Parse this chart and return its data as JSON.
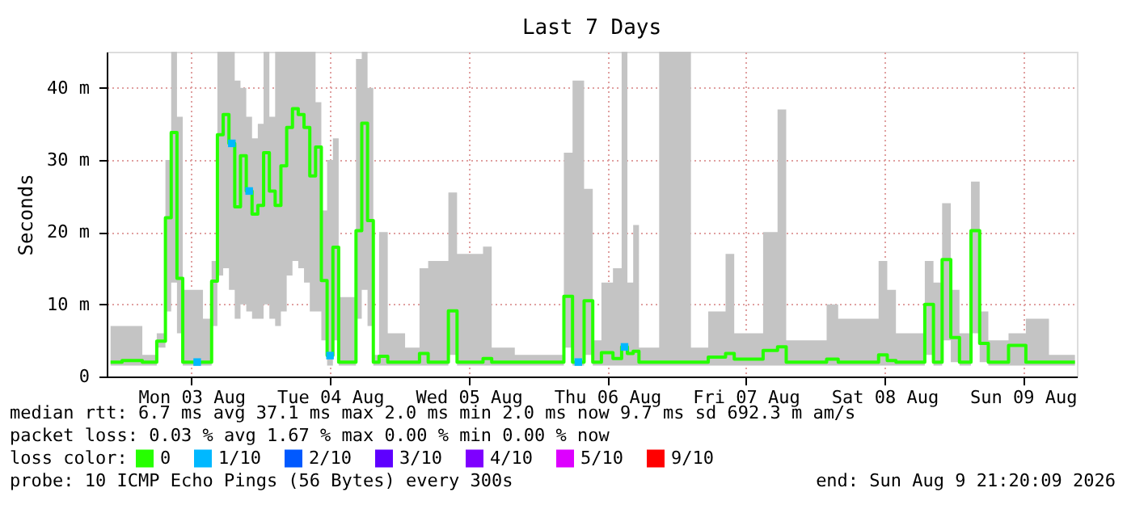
{
  "chart_data": {
    "type": "step",
    "title": "Last 7 Days",
    "ylabel": "Seconds",
    "legend_title": "loss color:",
    "xlim": [
      "2026-08-02T21:20",
      "2026-08-09T21:20"
    ],
    "xticks": [
      {
        "value": "2026-08-03T12:00",
        "label": "Mon 03 Aug"
      },
      {
        "value": "2026-08-04T12:00",
        "label": "Tue 04 Aug"
      },
      {
        "value": "2026-08-05T12:00",
        "label": "Wed 05 Aug"
      },
      {
        "value": "2026-08-06T12:00",
        "label": "Thu 06 Aug"
      },
      {
        "value": "2026-08-07T12:00",
        "label": "Fri 07 Aug"
      },
      {
        "value": "2026-08-08T12:00",
        "label": "Sat 08 Aug"
      },
      {
        "value": "2026-08-09T12:00",
        "label": "Sun 09 Aug"
      }
    ],
    "ylim": [
      0,
      45
    ],
    "yticks": [
      0,
      {
        "value": 10,
        "label": "10 m"
      },
      {
        "value": 20,
        "label": "20 m"
      },
      {
        "value": 30,
        "label": "30 m"
      },
      {
        "value": 40,
        "label": "40 m"
      }
    ],
    "grid": true,
    "legend": "bottom",
    "series": [
      {
        "name": "0",
        "color": "#26ff00",
        "x": [
          "2026-08-02T22:00",
          "2026-08-03T02:00",
          "2026-08-03T05:00",
          "2026-08-03T07:00",
          "2026-08-03T08:00",
          "2026-08-03T09:00",
          "2026-08-03T10:00",
          "2026-08-03T11:00",
          "2026-08-03T13:00",
          "2026-08-03T15:00",
          "2026-08-03T16:00",
          "2026-08-03T17:00",
          "2026-08-03T18:00",
          "2026-08-03T19:00",
          "2026-08-03T20:00",
          "2026-08-03T21:00",
          "2026-08-03T22:00",
          "2026-08-03T23:00",
          "2026-08-04T00:00",
          "2026-08-04T01:00",
          "2026-08-04T02:00",
          "2026-08-04T03:00",
          "2026-08-04T04:00",
          "2026-08-04T05:00",
          "2026-08-04T06:00",
          "2026-08-04T07:00",
          "2026-08-04T08:00",
          "2026-08-04T09:00",
          "2026-08-04T10:00",
          "2026-08-04T11:00",
          "2026-08-04T12:00",
          "2026-08-04T13:00",
          "2026-08-04T14:00",
          "2026-08-04T16:00",
          "2026-08-04T17:00",
          "2026-08-04T18:00",
          "2026-08-04T19:00",
          "2026-08-04T20:00",
          "2026-08-04T21:00",
          "2026-08-04T23:00",
          "2026-08-05T03:00",
          "2026-08-05T04:00",
          "2026-08-05T06:00",
          "2026-08-05T08:00",
          "2026-08-05T09:00",
          "2026-08-05T11:00",
          "2026-08-05T14:00",
          "2026-08-05T15:00",
          "2026-08-05T17:00",
          "2026-08-05T23:00",
          "2026-08-06T04:00",
          "2026-08-06T05:00",
          "2026-08-06T07:00",
          "2026-08-06T09:00",
          "2026-08-06T10:00",
          "2026-08-06T12:00",
          "2026-08-06T14:00",
          "2026-08-06T15:00",
          "2026-08-06T16:00",
          "2026-08-06T17:00",
          "2026-08-06T18:00",
          "2026-08-07T00:00",
          "2026-08-07T02:00",
          "2026-08-07T03:00",
          "2026-08-07T08:00",
          "2026-08-07T09:00",
          "2026-08-07T11:00",
          "2026-08-07T13:00",
          "2026-08-07T17:00",
          "2026-08-07T18:00",
          "2026-08-07T20:00",
          "2026-08-08T01:00",
          "2026-08-08T03:00",
          "2026-08-08T05:00",
          "2026-08-08T10:00",
          "2026-08-08T12:00",
          "2026-08-08T13:00",
          "2026-08-08T15:00",
          "2026-08-08T18:00",
          "2026-08-08T20:00",
          "2026-08-08T21:00",
          "2026-08-08T23:00",
          "2026-08-09T00:00",
          "2026-08-09T02:00",
          "2026-08-09T04:00",
          "2026-08-09T05:00",
          "2026-08-09T07:00",
          "2026-08-09T12:00",
          "2026-08-09T13:00",
          "2026-08-09T20:00",
          "2026-08-09T21:00"
        ],
        "values": [
          2,
          2.2,
          2,
          4.9,
          22,
          33.8,
          13.6,
          2,
          2,
          2,
          13.2,
          33.5,
          36.3,
          32.3,
          23.5,
          30.6,
          25.7,
          22.5,
          23.7,
          31,
          25.7,
          23.7,
          29.2,
          34.5,
          37.1,
          36.3,
          34.5,
          27.8,
          31.8,
          13.3,
          2.9,
          17.9,
          2,
          2,
          20.2,
          35.1,
          21.6,
          2,
          2.8,
          2,
          2,
          3.2,
          2,
          2,
          9.1,
          2,
          2,
          2.5,
          2,
          2,
          2,
          11.1,
          2,
          10.5,
          2,
          3.3,
          2.5,
          4.1,
          3.2,
          3.5,
          2,
          2,
          2,
          2,
          2.7,
          3.2,
          2.4,
          2.4,
          3.6,
          4.1,
          2,
          2,
          2.4,
          2,
          2,
          3,
          2.2,
          2,
          2,
          10,
          2,
          16.2,
          5.4,
          2,
          20.2,
          4.6,
          2,
          4.3,
          2,
          2,
          2
        ],
        "lower": [
          1.5,
          1.5,
          1.5,
          4,
          9,
          13,
          6,
          1.5,
          1.5,
          1.5,
          7,
          14,
          15,
          12,
          8,
          10,
          9,
          8,
          8,
          10,
          8,
          7,
          9,
          14,
          16,
          15,
          13,
          9,
          9,
          5,
          1.5,
          5,
          1.5,
          1.5,
          8,
          12,
          7,
          1.5,
          1.5,
          1.5,
          1.5,
          1.5,
          1.5,
          1.5,
          3,
          1.5,
          1.5,
          1.5,
          1.5,
          1.5,
          1.5,
          4,
          1.5,
          3,
          1.5,
          1.5,
          1.5,
          1.5,
          1.5,
          1.5,
          1.5,
          1.5,
          1.5,
          1.5,
          1.5,
          1.5,
          1.5,
          1.5,
          1.5,
          1.5,
          1.5,
          1.5,
          1.5,
          1.5,
          1.5,
          1.5,
          1.5,
          1.5,
          1.5,
          3,
          1.5,
          5,
          2,
          1.5,
          6,
          2,
          1.5,
          1.5,
          1.5,
          1.5,
          1.5
        ],
        "upper": [
          7,
          7,
          3,
          6,
          30,
          45,
          36,
          12,
          12,
          8,
          16,
          45,
          45,
          45,
          41,
          40,
          36,
          33,
          35,
          45,
          36,
          45,
          45,
          45,
          45,
          45,
          45,
          45,
          38,
          23,
          30,
          33,
          11,
          11,
          44,
          45,
          40,
          3,
          20,
          6,
          4,
          15,
          16,
          16,
          25.5,
          17,
          17,
          18,
          4,
          3,
          3,
          31,
          41,
          26,
          5,
          13,
          15,
          45,
          13,
          21,
          4,
          45,
          45,
          4,
          9,
          17,
          6,
          6,
          20,
          37,
          5,
          5,
          10,
          8,
          8,
          16,
          12,
          6,
          6,
          16,
          13,
          24,
          12,
          6,
          27,
          9,
          5,
          6,
          8,
          3,
          3
        ]
      },
      {
        "name": "1/10",
        "color": "#00b8ff",
        "type": "scatter",
        "x": [
          "2026-08-03T13:00",
          "2026-08-03T19:00",
          "2026-08-03T22:00",
          "2026-08-04T12:00",
          "2026-08-06T07:00",
          "2026-08-06T15:00"
        ],
        "values": [
          2,
          32.3,
          25.7,
          2.9,
          2,
          4.1
        ]
      },
      {
        "name": "2/10",
        "color": "#0059ff",
        "type": "scatter"
      },
      {
        "name": "3/10",
        "color": "#5e00ff",
        "type": "scatter"
      },
      {
        "name": "4/10",
        "color": "#7e00ff",
        "type": "scatter"
      },
      {
        "name": "5/10",
        "color": "#dd00ff",
        "type": "scatter"
      },
      {
        "name": "9/10",
        "color": "#ff0000",
        "type": "scatter"
      }
    ],
    "annotations": [
      "median rtt:  6.7 ms avg  37.1 ms max   2.0 ms min   2.0 ms now   9.7 ms sd  692.3 m am/s",
      "packet loss: 0.03 % avg  1.67 % max   0.00 % min   0.00 % now",
      "probe:        10 ICMP Echo Pings (56 Bytes) every 300s",
      "end: Sun Aug  9 21:20:09 2026"
    ]
  }
}
